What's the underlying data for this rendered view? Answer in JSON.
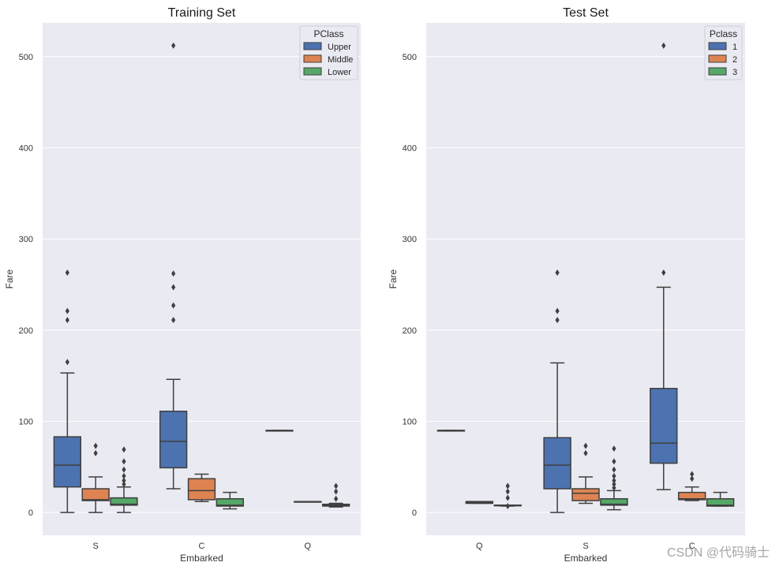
{
  "chart_data": [
    {
      "type": "box",
      "title": "Training Set",
      "xlabel": "Embarked",
      "ylabel": "Fare",
      "ylim": [
        -25,
        537
      ],
      "yticks": [
        0,
        100,
        200,
        300,
        400,
        500
      ],
      "categories": [
        "S",
        "C",
        "Q"
      ],
      "legend_title": "PClass",
      "legend_position": "top-right",
      "series": [
        {
          "name": "Upper",
          "color": "#4c72b0",
          "boxes": [
            {
              "category": "S",
              "min": 0,
              "q1": 28,
              "median": 52,
              "q3": 83,
              "max": 153,
              "outliers": [
                165,
                211,
                221,
                263
              ]
            },
            {
              "category": "C",
              "min": 26,
              "q1": 49,
              "median": 78,
              "q3": 111,
              "max": 146,
              "outliers": [
                211,
                227,
                247,
                262,
                512
              ]
            },
            {
              "category": "Q",
              "min": 90,
              "q1": 90,
              "median": 90,
              "q3": 90,
              "max": 90,
              "outliers": []
            }
          ]
        },
        {
          "name": "Middle",
          "color": "#dd8452",
          "boxes": [
            {
              "category": "S",
              "min": 0,
              "q1": 13,
              "median": 14,
              "q3": 26,
              "max": 39,
              "outliers": [
                65,
                73
              ]
            },
            {
              "category": "C",
              "min": 12,
              "q1": 14,
              "median": 24,
              "q3": 37,
              "max": 42,
              "outliers": []
            },
            {
              "category": "Q",
              "min": 12,
              "q1": 12,
              "median": 12,
              "q3": 12,
              "max": 12,
              "outliers": []
            }
          ]
        },
        {
          "name": "Lower",
          "color": "#55a868",
          "boxes": [
            {
              "category": "S",
              "min": 0,
              "q1": 8,
              "median": 9,
              "q3": 16,
              "max": 28,
              "outliers": [
                31,
                35,
                40,
                47,
                56,
                69
              ]
            },
            {
              "category": "C",
              "min": 4,
              "q1": 7,
              "median": 8,
              "q3": 15,
              "max": 22,
              "outliers": []
            },
            {
              "category": "Q",
              "min": 6,
              "q1": 7,
              "median": 8,
              "q3": 9,
              "max": 10,
              "outliers": [
                15,
                23,
                29
              ]
            }
          ]
        }
      ]
    },
    {
      "type": "box",
      "title": "Test Set",
      "xlabel": "Embarked",
      "ylabel": "Fare",
      "ylim": [
        -25,
        537
      ],
      "yticks": [
        0,
        100,
        200,
        300,
        400,
        500
      ],
      "categories": [
        "Q",
        "S",
        "C"
      ],
      "legend_title": "Pclass",
      "legend_position": "top-right",
      "series": [
        {
          "name": "1",
          "color": "#4c72b0",
          "boxes": [
            {
              "category": "Q",
              "min": 90,
              "q1": 90,
              "median": 90,
              "q3": 90,
              "max": 90,
              "outliers": []
            },
            {
              "category": "S",
              "min": 0,
              "q1": 26,
              "median": 52,
              "q3": 82,
              "max": 164,
              "outliers": [
                211,
                221,
                263
              ]
            },
            {
              "category": "C",
              "min": 25,
              "q1": 54,
              "median": 76,
              "q3": 136,
              "max": 247,
              "outliers": [
                263,
                512
              ]
            }
          ]
        },
        {
          "name": "2",
          "color": "#dd8452",
          "boxes": [
            {
              "category": "Q",
              "min": 10,
              "q1": 10,
              "median": 11,
              "q3": 12,
              "max": 12,
              "outliers": []
            },
            {
              "category": "S",
              "min": 10,
              "q1": 13,
              "median": 21,
              "q3": 26,
              "max": 39,
              "outliers": [
                65,
                73
              ]
            },
            {
              "category": "C",
              "min": 13,
              "q1": 14,
              "median": 15,
              "q3": 22,
              "max": 28,
              "outliers": [
                37,
                42
              ]
            }
          ]
        },
        {
          "name": "3",
          "color": "#55a868",
          "boxes": [
            {
              "category": "Q",
              "min": 7,
              "q1": 8,
              "median": 8,
              "q3": 8,
              "max": 8,
              "outliers": [
                7,
                16,
                23,
                29
              ]
            },
            {
              "category": "S",
              "min": 3,
              "q1": 8,
              "median": 9,
              "q3": 15,
              "max": 24,
              "outliers": [
                27,
                31,
                35,
                40,
                47,
                56,
                70
              ]
            },
            {
              "category": "C",
              "min": 7,
              "q1": 7,
              "median": 8,
              "q3": 15,
              "max": 22,
              "outliers": []
            }
          ]
        }
      ]
    }
  ],
  "watermark": "CSDN @代码骑士"
}
